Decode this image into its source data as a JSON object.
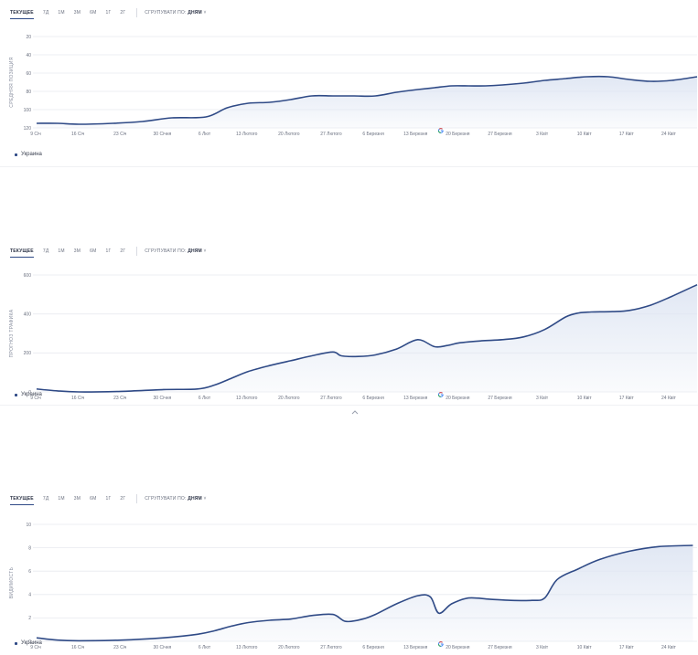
{
  "tabs": [
    "ТЕКУЩЕЕ",
    "7Д",
    "1М",
    "3М",
    "6М",
    "1Г",
    "2Г"
  ],
  "group_by_prefix": "СГРУПУВАТИ ПО: ",
  "group_by_value": "ДНЯМ",
  "legend_label": "Украина",
  "colors": {
    "line": "#2f4a86",
    "fill": "#dfe6f3",
    "grid": "#e8eaef"
  },
  "icons": {
    "chart_marker": "google-g-icon",
    "collapse": "chevron-up-icon",
    "group_by": "chevron-down-icon"
  },
  "x_ticks": [
    "9 Січ",
    "16 Січ",
    "23 Січ",
    "30 Січня",
    "6 Лют",
    "13 Лютого",
    "20 Лютого",
    "27 Лютого",
    "6 Березня",
    "13 Березня",
    "20 Березня",
    "27 Березня",
    "3 Квіт",
    "10 Квіт",
    "17 Квіт",
    "24 Квіт"
  ],
  "chart_data": [
    {
      "type": "area",
      "ylabel": "СРЕДНЯЯ ПОЗИЦИЯ",
      "ylim": [
        120,
        20
      ],
      "yticks": [
        20,
        40,
        60,
        80,
        100,
        120
      ],
      "inverted": true,
      "grid": true,
      "legend": "bottom-left",
      "series": [
        {
          "name": "Украина",
          "x": [
            0,
            5,
            10,
            18,
            25,
            32,
            40,
            45,
            50,
            55,
            60,
            65,
            70,
            75,
            80,
            85,
            90,
            94,
            98,
            102,
            106,
            110,
            115,
            120,
            125,
            130,
            135,
            140,
            145,
            150,
            156
          ],
          "values": [
            115,
            115,
            116,
            115,
            113,
            109,
            108,
            98,
            93,
            92,
            89,
            85,
            85,
            85,
            85,
            81,
            78,
            76,
            74,
            74,
            74,
            73,
            71,
            68,
            66,
            64,
            64,
            67,
            69,
            68,
            64
          ]
        }
      ]
    },
    {
      "type": "area",
      "ylabel": "ПРОГНОЗ ТРАФИКА",
      "ylim": [
        0,
        600
      ],
      "yticks": [
        0,
        200,
        400,
        600
      ],
      "grid": true,
      "legend": "bottom-left",
      "series": [
        {
          "name": "Украина",
          "x": [
            0,
            5,
            10,
            20,
            30,
            38,
            42,
            46,
            50,
            55,
            60,
            65,
            70,
            72,
            76,
            80,
            85,
            90,
            94,
            97,
            100,
            105,
            110,
            115,
            120,
            125,
            128,
            131,
            136,
            140,
            145,
            150,
            156
          ],
          "values": [
            15,
            5,
            0,
            3,
            12,
            15,
            35,
            70,
            105,
            135,
            160,
            185,
            205,
            185,
            182,
            190,
            220,
            268,
            232,
            238,
            252,
            262,
            268,
            282,
            320,
            385,
            405,
            410,
            412,
            418,
            445,
            490,
            550
          ]
        }
      ]
    },
    {
      "type": "area",
      "ylabel": "ВИДИМОСТЬ",
      "ylim": [
        0,
        10
      ],
      "yticks": [
        0,
        2,
        4,
        6,
        8,
        10
      ],
      "grid": true,
      "legend": "bottom-left",
      "series": [
        {
          "name": "Украина",
          "x": [
            0,
            5,
            10,
            20,
            30,
            38,
            42,
            46,
            50,
            55,
            60,
            65,
            70,
            73,
            77,
            80,
            85,
            90,
            93,
            95,
            98,
            102,
            107,
            112,
            117,
            120,
            123,
            128,
            133,
            140,
            147,
            155
          ],
          "values": [
            0.3,
            0.1,
            0.05,
            0.1,
            0.3,
            0.6,
            0.9,
            1.3,
            1.6,
            1.8,
            1.9,
            2.2,
            2.3,
            1.7,
            1.9,
            2.3,
            3.2,
            3.9,
            3.8,
            2.4,
            3.2,
            3.7,
            3.6,
            3.5,
            3.5,
            3.7,
            5.3,
            6.2,
            7.0,
            7.7,
            8.1,
            8.2
          ]
        }
      ]
    }
  ]
}
